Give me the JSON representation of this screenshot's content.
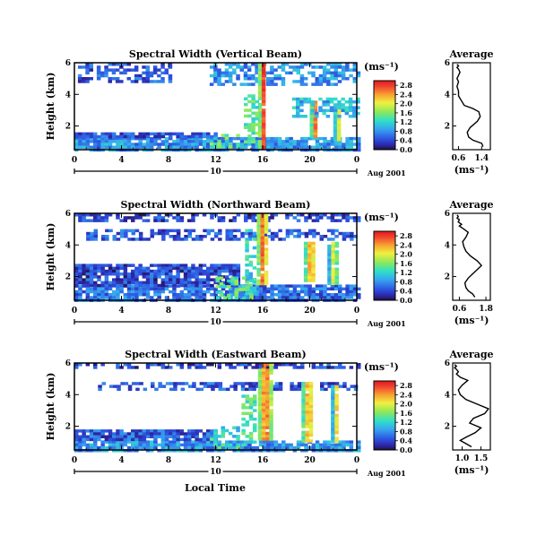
{
  "figure": {
    "xlabel_bottom": "Local Time",
    "date_label": "Aug 2001",
    "day_label": "10"
  },
  "chart_data": [
    {
      "type": "heatmap",
      "title": "Spectral Width (Vertical Beam)",
      "xlabel": "",
      "ylabel": "Height (km)",
      "x_ticks": [
        "0",
        "4",
        "8",
        "12",
        "16",
        "20",
        "0"
      ],
      "xlim": [
        0,
        24
      ],
      "y_ticks": [
        "2",
        "4",
        "6"
      ],
      "ylim": [
        0.5,
        6
      ],
      "colorbar": {
        "unit": "(ms⁻¹)",
        "ticks": [
          "0.0",
          "0.4",
          "0.8",
          "1.2",
          "1.6",
          "2.0",
          "2.4",
          "2.8"
        ],
        "range": [
          0,
          3.0
        ]
      },
      "features": [
        {
          "kind": "band",
          "t": [
            0,
            24
          ],
          "h": [
            0.5,
            1.3
          ],
          "value": 0.8
        },
        {
          "kind": "band",
          "t": [
            0,
            12
          ],
          "h": [
            1.3,
            1.6
          ],
          "value": 0.5
        },
        {
          "kind": "patch",
          "t": [
            0.3,
            8
          ],
          "h": [
            4.8,
            6
          ],
          "value": 0.5
        },
        {
          "kind": "patch",
          "t": [
            11.5,
            24
          ],
          "h": [
            4.6,
            6
          ],
          "value": 0.8
        },
        {
          "kind": "streak",
          "t": [
            15.6,
            16.2
          ],
          "h": [
            0.7,
            6
          ],
          "value": 2.8
        },
        {
          "kind": "streak",
          "t": [
            20,
            20.6
          ],
          "h": [
            1.3,
            3.6
          ],
          "value": 2.6
        },
        {
          "kind": "streak",
          "t": [
            22,
            22.5
          ],
          "h": [
            1.2,
            3.6
          ],
          "value": 2.4
        },
        {
          "kind": "patch",
          "t": [
            14.4,
            15.5
          ],
          "h": [
            1,
            4
          ],
          "value": 1.4
        },
        {
          "kind": "patch",
          "t": [
            18.5,
            24
          ],
          "h": [
            2.7,
            3.8
          ],
          "value": 1.0
        },
        {
          "kind": "patch",
          "t": [
            11.5,
            14
          ],
          "h": [
            0.6,
            1.5
          ],
          "value": 1.4
        }
      ],
      "profile": {
        "title": "Average",
        "x_ticks": [
          "0.6",
          "1.4"
        ],
        "xlim": [
          0.4,
          1.7
        ],
        "y_ticks": [
          "2",
          "4",
          "6"
        ],
        "ylim": [
          0.5,
          6
        ],
        "xlabel": "(ms⁻¹)",
        "x": [
          1.45,
          1.4,
          1.1,
          0.95,
          0.9,
          1.0,
          1.25,
          1.35,
          1.3,
          1.1,
          0.8,
          0.7,
          0.6,
          0.6,
          0.55,
          0.6,
          0.55,
          0.6,
          0.65,
          0.6,
          0.55,
          0.6,
          0.55
        ],
        "y": [
          0.7,
          0.9,
          1.1,
          1.3,
          1.6,
          1.9,
          2.3,
          2.6,
          2.9,
          3.1,
          3.3,
          3.6,
          3.9,
          4.2,
          4.5,
          4.8,
          5.0,
          5.2,
          5.4,
          5.6,
          5.7,
          5.8,
          5.9
        ]
      }
    },
    {
      "type": "heatmap",
      "title": "Spectral Width (Northward Beam)",
      "xlabel": "",
      "ylabel": "Height (km)",
      "x_ticks": [
        "0",
        "4",
        "8",
        "12",
        "16",
        "20",
        "0"
      ],
      "xlim": [
        0,
        24
      ],
      "y_ticks": [
        "2",
        "4",
        "6"
      ],
      "ylim": [
        0.5,
        6
      ],
      "colorbar": {
        "unit": "(ms⁻¹)",
        "ticks": [
          "0.0",
          "0.4",
          "0.8",
          "1.2",
          "1.6",
          "2.0",
          "2.4",
          "2.8"
        ],
        "range": [
          0,
          3.0
        ]
      },
      "features": [
        {
          "kind": "band",
          "t": [
            0,
            24
          ],
          "h": [
            0.5,
            1.5
          ],
          "value": 0.6
        },
        {
          "kind": "band",
          "t": [
            0,
            14
          ],
          "h": [
            1.5,
            2.8
          ],
          "value": 0.4
        },
        {
          "kind": "patch",
          "t": [
            0,
            24
          ],
          "h": [
            5.6,
            6
          ],
          "value": 0.4
        },
        {
          "kind": "patch",
          "t": [
            1,
            24
          ],
          "h": [
            4.4,
            5.0
          ],
          "value": 0.5
        },
        {
          "kind": "streak",
          "t": [
            15.5,
            16.3
          ],
          "h": [
            1.5,
            6
          ],
          "value": 2.8
        },
        {
          "kind": "streak",
          "t": [
            19.5,
            20.4
          ],
          "h": [
            1.8,
            4.2
          ],
          "value": 2.6
        },
        {
          "kind": "streak",
          "t": [
            21.5,
            22.3
          ],
          "h": [
            1.5,
            4.2
          ],
          "value": 2.2
        },
        {
          "kind": "patch",
          "t": [
            14.5,
            15.4
          ],
          "h": [
            1,
            5
          ],
          "value": 1.2
        },
        {
          "kind": "patch",
          "t": [
            12,
            15
          ],
          "h": [
            0.6,
            2.0
          ],
          "value": 1.4
        }
      ],
      "profile": {
        "title": "Average",
        "x_ticks": [
          "0.6",
          "1.8"
        ],
        "xlim": [
          0.3,
          2.0
        ],
        "y_ticks": [
          "2",
          "4",
          "6"
        ],
        "ylim": [
          0.5,
          6
        ],
        "xlabel": "(ms⁻¹)",
        "x": [
          1.3,
          1.2,
          1.0,
          0.9,
          0.85,
          1.0,
          1.3,
          1.6,
          1.4,
          1.1,
          0.9,
          0.8,
          0.75,
          0.9,
          1.0,
          0.8,
          0.6,
          0.7,
          0.55,
          0.6,
          0.5,
          0.55,
          0.5
        ],
        "y": [
          0.7,
          0.9,
          1.1,
          1.3,
          1.6,
          1.9,
          2.3,
          2.7,
          3.0,
          3.3,
          3.6,
          3.9,
          4.2,
          4.5,
          4.8,
          5.0,
          5.2,
          5.3,
          5.45,
          5.6,
          5.7,
          5.8,
          5.9
        ]
      }
    },
    {
      "type": "heatmap",
      "title": "Spectral Width (Eastward Beam)",
      "xlabel": "Local Time",
      "ylabel": "Height (km)",
      "x_ticks": [
        "0",
        "4",
        "8",
        "12",
        "16",
        "20",
        "0"
      ],
      "xlim": [
        0,
        24
      ],
      "y_ticks": [
        "2",
        "4",
        "6"
      ],
      "ylim": [
        0.5,
        6
      ],
      "colorbar": {
        "unit": "(ms⁻¹)",
        "ticks": [
          "0.0",
          "0.4",
          "0.8",
          "1.2",
          "1.6",
          "2.0",
          "2.4",
          "2.8"
        ],
        "range": [
          0,
          3.0
        ]
      },
      "features": [
        {
          "kind": "band",
          "t": [
            0,
            24
          ],
          "h": [
            0.5,
            1.1
          ],
          "value": 0.8
        },
        {
          "kind": "band",
          "t": [
            0,
            12
          ],
          "h": [
            1.1,
            1.8
          ],
          "value": 0.5
        },
        {
          "kind": "patch",
          "t": [
            0,
            24
          ],
          "h": [
            5.7,
            6
          ],
          "value": 0.4
        },
        {
          "kind": "patch",
          "t": [
            2,
            24
          ],
          "h": [
            4.3,
            4.8
          ],
          "value": 0.5
        },
        {
          "kind": "streak",
          "t": [
            15.6,
            16.6
          ],
          "h": [
            1.2,
            6
          ],
          "value": 2.8
        },
        {
          "kind": "streak",
          "t": [
            19.3,
            20.2
          ],
          "h": [
            1.0,
            4.8
          ],
          "value": 2.6
        },
        {
          "kind": "streak",
          "t": [
            21.8,
            22.4
          ],
          "h": [
            1.0,
            4.6
          ],
          "value": 2.2
        },
        {
          "kind": "patch",
          "t": [
            14.2,
            15.4
          ],
          "h": [
            0.8,
            4.0
          ],
          "value": 1.4
        },
        {
          "kind": "patch",
          "t": [
            11.5,
            14
          ],
          "h": [
            0.6,
            2.0
          ],
          "value": 1.2
        }
      ],
      "profile": {
        "title": "Average",
        "x_ticks": [
          "1.0",
          "1.5"
        ],
        "xlim": [
          0.75,
          1.75
        ],
        "y_ticks": [
          "2",
          "4",
          "6"
        ],
        "ylim": [
          0.5,
          6
        ],
        "xlabel": "(ms⁻¹)",
        "x": [
          1.25,
          1.1,
          0.95,
          1.1,
          1.35,
          1.5,
          1.2,
          1.3,
          1.6,
          1.7,
          1.4,
          1.1,
          0.95,
          0.9,
          1.0,
          1.15,
          0.95,
          0.85,
          0.9,
          0.85,
          0.8,
          0.85,
          0.8
        ],
        "y": [
          0.7,
          0.9,
          1.1,
          1.3,
          1.6,
          1.9,
          2.2,
          2.5,
          2.8,
          3.1,
          3.4,
          3.7,
          4.0,
          4.3,
          4.6,
          4.9,
          5.1,
          5.3,
          5.45,
          5.6,
          5.7,
          5.8,
          5.9
        ]
      }
    }
  ]
}
